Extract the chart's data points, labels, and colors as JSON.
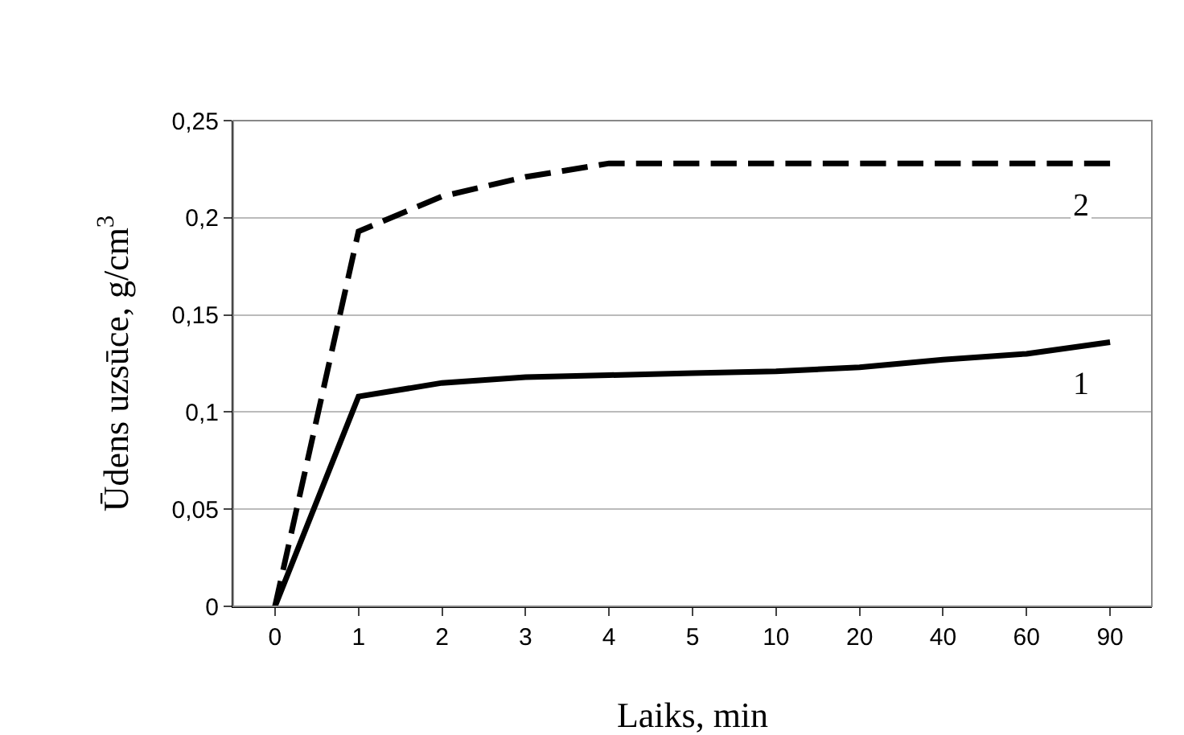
{
  "chart_data": {
    "type": "line",
    "xlabel": "Laiks, min",
    "ylabel": "Ūdens uzsūce, g/cm$^{3}$",
    "categories": [
      "0",
      "1",
      "2",
      "3",
      "4",
      "5",
      "10",
      "20",
      "40",
      "60",
      "90"
    ],
    "series": [
      {
        "name": "1",
        "color": "#000000",
        "line_style": "solid",
        "values": [
          0,
          0.108,
          0.115,
          0.118,
          0.119,
          0.12,
          0.121,
          0.123,
          0.127,
          0.13,
          0.136
        ]
      },
      {
        "name": "2",
        "color": "#000000",
        "line_style": "dashed",
        "values": [
          0,
          0.193,
          0.211,
          0.221,
          0.228,
          0.228,
          0.228,
          0.228,
          0.228,
          0.228,
          0.228
        ]
      }
    ],
    "ylim": [
      0,
      0.25
    ],
    "yticks": [
      0,
      {
        "value": 0.05,
        "label": "0,05"
      },
      {
        "value": 0.1,
        "label": "0,1"
      },
      {
        "value": 0.15,
        "label": "0,15"
      },
      {
        "value": 0.2,
        "label": "0,2"
      },
      {
        "value": 0.25,
        "label": "0,25"
      }
    ],
    "grid": "y",
    "legend": false,
    "marker": "none"
  }
}
